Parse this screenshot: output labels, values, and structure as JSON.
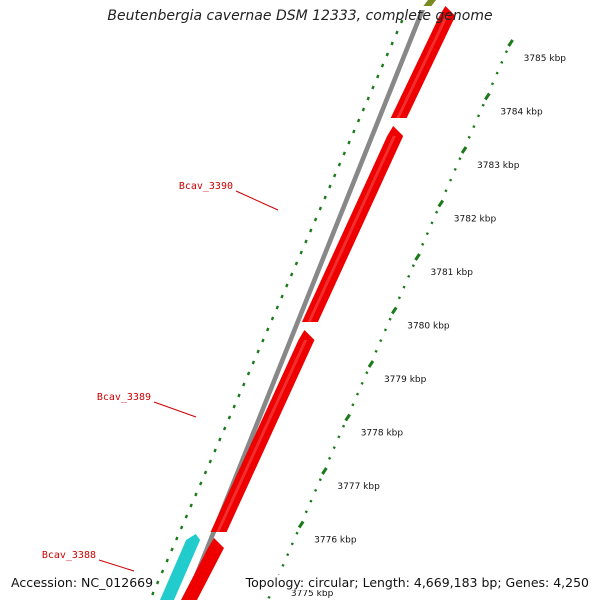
{
  "title": "Beutenbergia cavernae DSM 12333, complete genome",
  "footer": {
    "accession": "Accession: NC_012669",
    "summary": "Topology: circular; Length: 4,669,183 bp; Genes: 4,250"
  },
  "ticks": [
    {
      "label": "3785 kbp",
      "kbp": 3785
    },
    {
      "label": "3784 kbp",
      "kbp": 3784
    },
    {
      "label": "3783 kbp",
      "kbp": 3783
    },
    {
      "label": "3782 kbp",
      "kbp": 3782
    },
    {
      "label": "3781 kbp",
      "kbp": 3781
    },
    {
      "label": "3780 kbp",
      "kbp": 3780
    },
    {
      "label": "3779 kbp",
      "kbp": 3779
    },
    {
      "label": "3778 kbp",
      "kbp": 3778
    },
    {
      "label": "3777 kbp",
      "kbp": 3777
    },
    {
      "label": "3776 kbp",
      "kbp": 3776
    },
    {
      "label": "3775 kbp",
      "kbp": 3775
    }
  ],
  "genes": [
    {
      "name": "Bcav_3390",
      "color": "#ee0000"
    },
    {
      "name": "Bcav_3389",
      "color": "#ee0000"
    },
    {
      "name": "Bcav_3388",
      "color": "#22cccc"
    }
  ],
  "colors": {
    "gene_red": "#ee0000",
    "gene_cyan": "#22cccc",
    "gene_olive": "#7a8a20",
    "backbone": "#888888",
    "tick_green": "#1a7a1a",
    "label_red": "#cc0000"
  }
}
